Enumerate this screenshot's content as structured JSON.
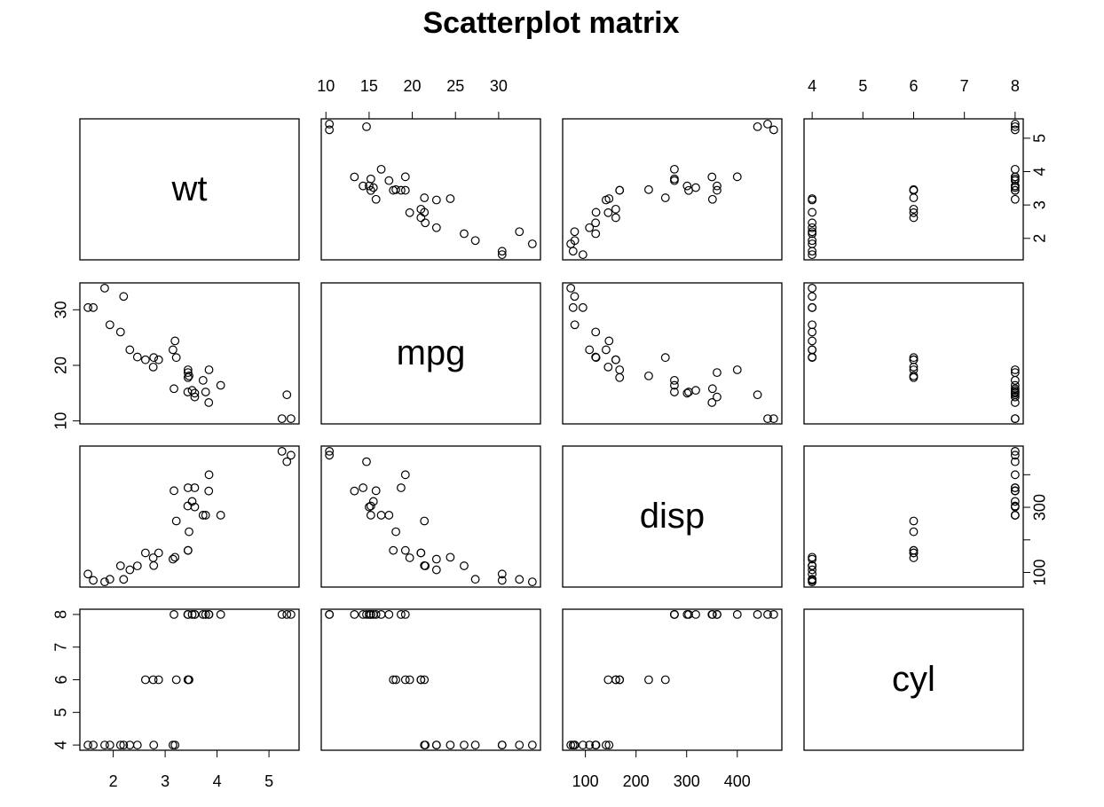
{
  "chart_data": {
    "type": "scatter_matrix",
    "title": "Scatterplot matrix",
    "variables": [
      {
        "name": "wt",
        "lim": [
          1.357,
          5.58
        ],
        "xticks": [
          2,
          3,
          4,
          5
        ],
        "yticks": [
          2,
          3,
          4,
          5
        ],
        "values": [
          2.62,
          2.875,
          2.32,
          3.215,
          3.44,
          3.46,
          3.57,
          3.19,
          3.15,
          3.44,
          3.44,
          4.07,
          3.73,
          3.78,
          5.25,
          5.424,
          5.345,
          2.2,
          1.615,
          1.835,
          2.465,
          3.52,
          3.435,
          3.84,
          3.845,
          1.935,
          2.14,
          1.513,
          3.17,
          2.77,
          3.57,
          2.78
        ]
      },
      {
        "name": "mpg",
        "lim": [
          9.46,
          34.84
        ],
        "xticks": [
          10,
          15,
          20,
          25,
          30
        ],
        "yticks": [
          10,
          20,
          30
        ],
        "values": [
          21.0,
          21.0,
          22.8,
          21.4,
          18.7,
          18.1,
          14.3,
          24.4,
          22.8,
          19.2,
          17.8,
          16.4,
          17.3,
          15.2,
          10.4,
          10.4,
          14.7,
          32.4,
          30.4,
          33.9,
          21.5,
          15.5,
          15.2,
          13.3,
          19.2,
          27.3,
          26.0,
          30.4,
          15.8,
          19.7,
          15.0,
          21.4
        ]
      },
      {
        "name": "disp",
        "lim": [
          55.06,
          488.04
        ],
        "xticks": [
          100,
          200,
          300,
          400
        ],
        "yticks": [
          100,
          300
        ],
        "yminor_ticks": [
          200,
          400
        ],
        "values": [
          160,
          160,
          108,
          258,
          360,
          225,
          360,
          146.7,
          140.8,
          167.6,
          167.6,
          275.8,
          275.8,
          275.8,
          472,
          460,
          440,
          78.7,
          75.7,
          71.1,
          120.1,
          318,
          304,
          350,
          400,
          79,
          120.3,
          95.1,
          351,
          145,
          301,
          121
        ]
      },
      {
        "name": "cyl",
        "lim": [
          3.84,
          8.16
        ],
        "xticks": [
          4,
          5,
          6,
          7,
          8
        ],
        "yticks": [
          4,
          5,
          6,
          7,
          8
        ],
        "values": [
          6,
          6,
          4,
          6,
          8,
          6,
          8,
          4,
          4,
          6,
          6,
          8,
          8,
          8,
          8,
          8,
          8,
          4,
          4,
          4,
          4,
          8,
          8,
          8,
          8,
          4,
          4,
          4,
          8,
          6,
          8,
          4
        ]
      }
    ]
  }
}
